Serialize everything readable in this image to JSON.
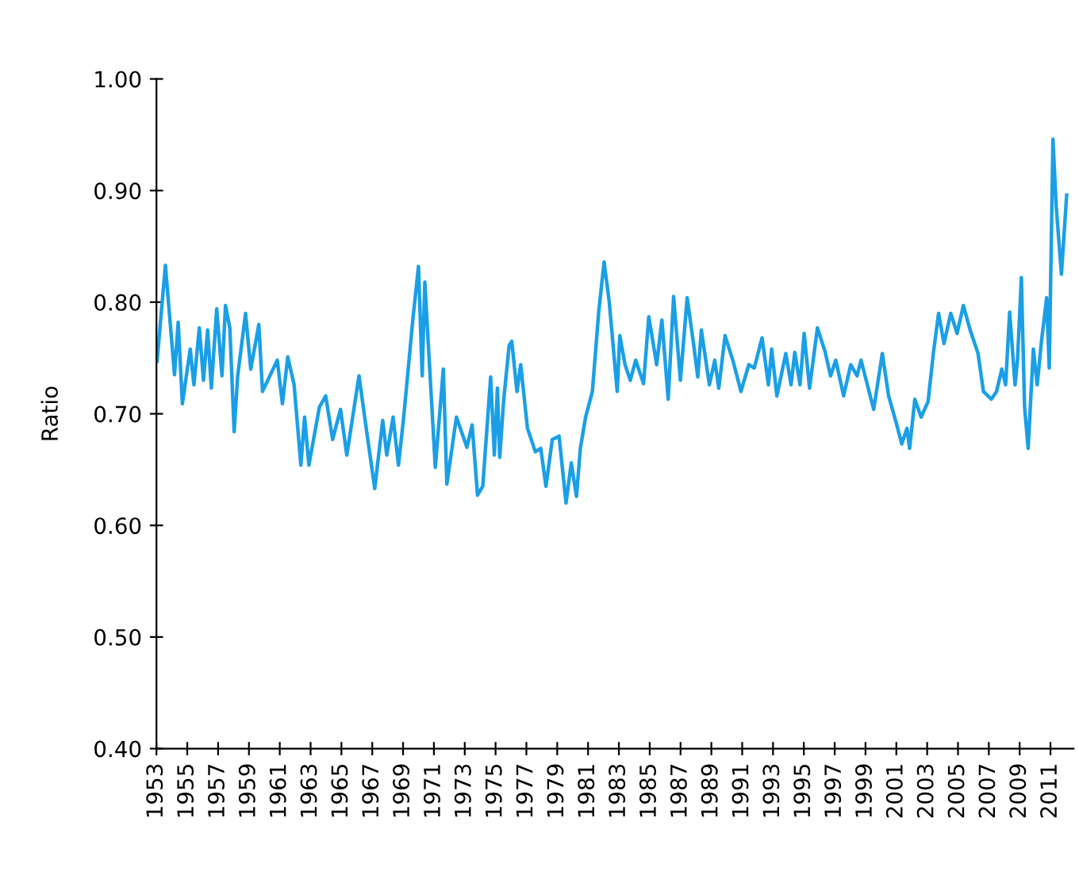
{
  "chart_data": {
    "type": "line",
    "ylabel": "Ratio",
    "xlim": [
      1953,
      2012.5
    ],
    "xticks": [
      1953,
      1955,
      1957,
      1959,
      1961,
      1963,
      1965,
      1967,
      1969,
      1971,
      1973,
      1975,
      1977,
      1979,
      1981,
      1983,
      1985,
      1987,
      1989,
      1991,
      1993,
      1995,
      1997,
      1999,
      2001,
      2003,
      2005,
      2007,
      2009,
      2011
    ],
    "ylim": [
      0.4,
      1.0
    ],
    "yticks": [
      {
        "value": 0.4,
        "label": "0.40"
      },
      {
        "value": 0.5,
        "label": "0.50"
      },
      {
        "value": 0.6,
        "label": "0.60"
      },
      {
        "value": 0.7,
        "label": "0.70"
      },
      {
        "value": 0.8,
        "label": "0.80"
      },
      {
        "value": 0.9,
        "label": "0.90"
      },
      {
        "value": 1.0,
        "label": "1.00"
      }
    ],
    "grid": false,
    "legend": false,
    "marker": "none",
    "line_style": "solid",
    "series": [
      {
        "color": "#1a9fe6",
        "x": [
          1953.04,
          1953.58,
          1954.17,
          1954.41,
          1954.68,
          1955.19,
          1955.43,
          1955.78,
          1956.05,
          1956.32,
          1956.56,
          1956.91,
          1957.25,
          1957.48,
          1957.76,
          1958.04,
          1958.27,
          1958.78,
          1959.12,
          1959.64,
          1959.88,
          1960.84,
          1961.17,
          1961.52,
          1961.93,
          1962.37,
          1962.61,
          1962.89,
          1963.57,
          1963.98,
          1964.43,
          1964.94,
          1965.35,
          1966.14,
          1966.65,
          1967.16,
          1967.68,
          1967.94,
          1968.35,
          1968.7,
          1969.04,
          1969.63,
          1970.0,
          1970.24,
          1970.41,
          1971.09,
          1971.61,
          1971.84,
          1972.46,
          1973.14,
          1973.48,
          1973.83,
          1974.17,
          1974.68,
          1974.92,
          1975.12,
          1975.27,
          1975.53,
          1975.88,
          1976.05,
          1976.39,
          1976.63,
          1977.07,
          1977.58,
          1977.93,
          1978.27,
          1978.68,
          1979.12,
          1979.57,
          1979.91,
          1980.25,
          1980.5,
          1980.84,
          1981.28,
          1981.69,
          1982.04,
          1982.37,
          1982.89,
          1983.06,
          1983.4,
          1983.74,
          1984.09,
          1984.6,
          1984.94,
          1985.45,
          1985.79,
          1986.2,
          1986.55,
          1986.99,
          1987.43,
          1987.84,
          1988.12,
          1988.35,
          1988.87,
          1989.22,
          1989.48,
          1989.89,
          1990.41,
          1990.92,
          1991.43,
          1991.78,
          1992.29,
          1992.7,
          1992.91,
          1993.25,
          1993.83,
          1994.17,
          1994.41,
          1994.75,
          1995.02,
          1995.37,
          1995.88,
          1996.39,
          1996.73,
          1997.07,
          1997.58,
          1998.04,
          1998.45,
          1998.71,
          1999.12,
          1999.53,
          2000.09,
          2000.5,
          2001.01,
          2001.35,
          2001.69,
          2001.86,
          2002.2,
          2002.61,
          2003.06,
          2003.4,
          2003.74,
          2004.09,
          2004.53,
          2004.94,
          2005.35,
          2005.79,
          2006.3,
          2006.65,
          2007.16,
          2007.5,
          2007.84,
          2008.09,
          2008.35,
          2008.7,
          2008.86,
          2009.11,
          2009.32,
          2009.55,
          2009.89,
          2010.14,
          2010.4,
          2010.75,
          2010.92,
          2011.16,
          2011.37,
          2011.71,
          2012.05
        ],
        "values": [
          0.747,
          0.833,
          0.735,
          0.782,
          0.709,
          0.758,
          0.726,
          0.777,
          0.73,
          0.775,
          0.723,
          0.794,
          0.734,
          0.797,
          0.777,
          0.684,
          0.734,
          0.79,
          0.74,
          0.78,
          0.72,
          0.748,
          0.709,
          0.751,
          0.726,
          0.654,
          0.697,
          0.654,
          0.706,
          0.716,
          0.677,
          0.704,
          0.663,
          0.734,
          0.683,
          0.633,
          0.694,
          0.663,
          0.697,
          0.654,
          0.697,
          0.784,
          0.832,
          0.734,
          0.818,
          0.652,
          0.74,
          0.637,
          0.697,
          0.67,
          0.69,
          0.627,
          0.635,
          0.733,
          0.663,
          0.723,
          0.661,
          0.713,
          0.761,
          0.765,
          0.72,
          0.744,
          0.687,
          0.666,
          0.669,
          0.635,
          0.677,
          0.68,
          0.62,
          0.656,
          0.626,
          0.669,
          0.697,
          0.72,
          0.791,
          0.836,
          0.801,
          0.72,
          0.77,
          0.744,
          0.73,
          0.748,
          0.727,
          0.787,
          0.744,
          0.784,
          0.713,
          0.805,
          0.73,
          0.804,
          0.763,
          0.733,
          0.775,
          0.726,
          0.748,
          0.723,
          0.77,
          0.747,
          0.72,
          0.744,
          0.741,
          0.768,
          0.726,
          0.758,
          0.716,
          0.754,
          0.726,
          0.755,
          0.726,
          0.772,
          0.723,
          0.777,
          0.755,
          0.734,
          0.748,
          0.716,
          0.744,
          0.734,
          0.748,
          0.726,
          0.704,
          0.754,
          0.716,
          0.691,
          0.673,
          0.687,
          0.669,
          0.713,
          0.697,
          0.711,
          0.754,
          0.79,
          0.763,
          0.79,
          0.772,
          0.797,
          0.775,
          0.754,
          0.72,
          0.713,
          0.72,
          0.74,
          0.726,
          0.791,
          0.726,
          0.748,
          0.822,
          0.706,
          0.669,
          0.758,
          0.726,
          0.763,
          0.804,
          0.741,
          0.946,
          0.886,
          0.825,
          0.896
        ]
      }
    ]
  }
}
